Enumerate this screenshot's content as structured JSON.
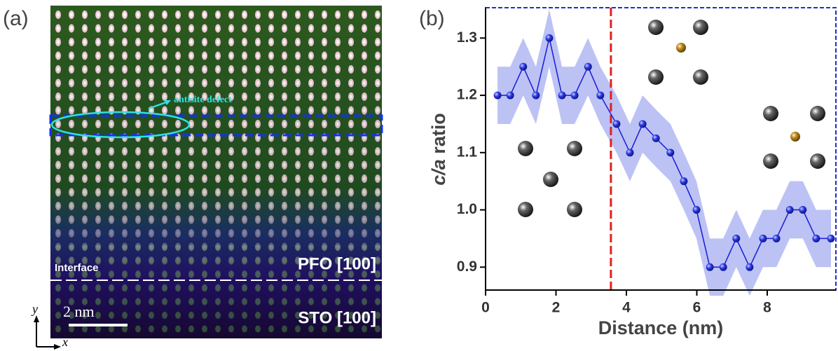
{
  "image": {
    "panel_label": "(a)",
    "annotation": "antisite defect",
    "interface_label": "Interface",
    "top_layer": "PFO [100]",
    "bottom_layer": "STO [100]",
    "scale_bar": "2 nm",
    "y_axis": "y",
    "x_axis": "x"
  },
  "chart_data": {
    "type": "line",
    "panel_label": "(b)",
    "x_label": "Distance (nm)",
    "y_label_italic": "c/a",
    "y_label": " ratio",
    "x": [
      0.34,
      0.7,
      1.07,
      1.43,
      1.81,
      2.17,
      2.53,
      2.91,
      3.26,
      3.72,
      4.1,
      4.46,
      4.84,
      5.25,
      5.63,
      5.99,
      6.37,
      6.75,
      7.12,
      7.5,
      7.88,
      8.26,
      8.64,
      9.01,
      9.39,
      9.81
    ],
    "values": [
      1.2,
      1.2,
      1.25,
      1.2,
      1.3,
      1.2,
      1.2,
      1.25,
      1.2,
      1.15,
      1.1,
      1.15,
      1.125,
      1.1,
      1.05,
      1.0,
      0.9,
      0.9,
      0.95,
      0.9,
      0.95,
      0.95,
      1.0,
      1.0,
      0.95,
      0.95
    ],
    "band": 0.05,
    "color": "#1a1ad8",
    "band_color": "#bcc2f4",
    "vline": 3.56,
    "vline_color": "#e02020",
    "xlim": [
      0,
      9.95
    ],
    "ylim": [
      0.86,
      1.353
    ],
    "xticks": [
      0,
      2,
      4,
      6,
      8
    ],
    "yticks": [
      0.9,
      {
        "value": 1,
        "label": "1.0"
      },
      1.1,
      1.2,
      1.3
    ]
  }
}
